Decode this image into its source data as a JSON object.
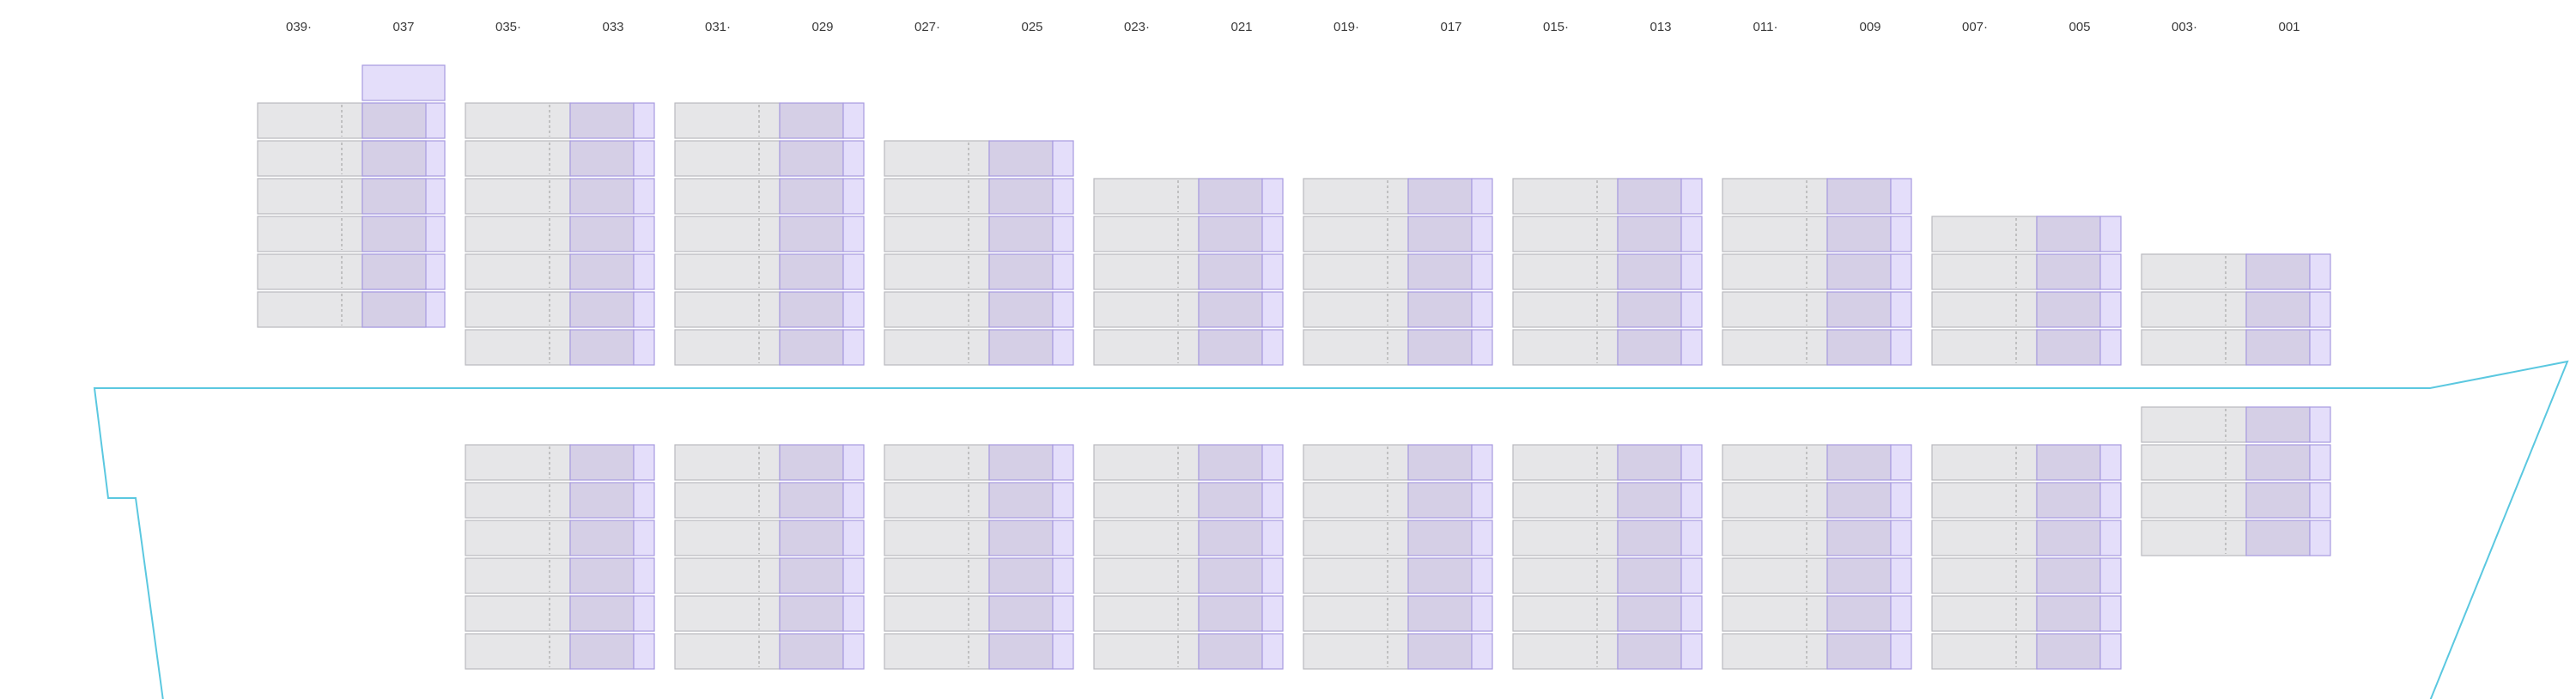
{
  "bays": [
    {
      "label": "039",
      "marker": "·"
    },
    {
      "label": "037",
      "marker": ""
    },
    {
      "label": "035",
      "marker": "·"
    },
    {
      "label": "033",
      "marker": ""
    },
    {
      "label": "031",
      "marker": "·"
    },
    {
      "label": "029",
      "marker": ""
    },
    {
      "label": "027",
      "marker": "·"
    },
    {
      "label": "025",
      "marker": ""
    },
    {
      "label": "023",
      "marker": "·"
    },
    {
      "label": "021",
      "marker": ""
    },
    {
      "label": "019",
      "marker": "·"
    },
    {
      "label": "017",
      "marker": ""
    },
    {
      "label": "015",
      "marker": "·"
    },
    {
      "label": "013",
      "marker": ""
    },
    {
      "label": "011",
      "marker": "·"
    },
    {
      "label": "009",
      "marker": ""
    },
    {
      "label": "007",
      "marker": "·"
    },
    {
      "label": "005",
      "marker": ""
    },
    {
      "label": "003",
      "marker": "·"
    },
    {
      "label": "001",
      "marker": ""
    }
  ],
  "colors": {
    "hull": "#5bc8e0",
    "twenty_ft_fill": "#e6e6e8",
    "twenty_ft_stroke": "#b9b9bf",
    "forty_ft_fill": "#d5cfe6",
    "forty_ft_stroke": "#a79ae0",
    "forty_ft_light_fill": "#e4defa",
    "label_text": "#3a3a3a"
  }
}
